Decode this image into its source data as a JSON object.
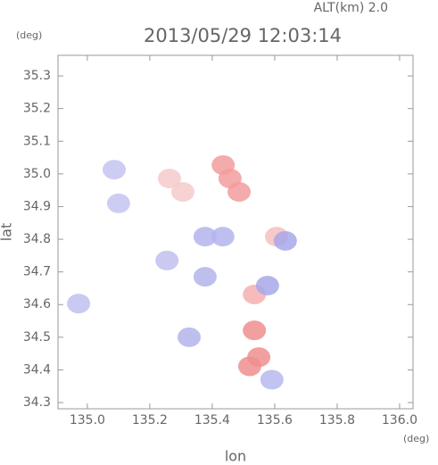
{
  "chart_data": {
    "type": "scatter",
    "title": "2013/05/29 12:03:14",
    "altitude": "ALT(km)  2.0",
    "x_label": "lon",
    "y_label": "lat",
    "x_unit": "(deg)",
    "y_unit": "(deg)",
    "xlim": [
      134.906,
      136.043
    ],
    "ylim": [
      34.281,
      35.363
    ],
    "xticks": [
      {
        "value": 135.0,
        "label": "135.0"
      },
      135.2,
      135.4,
      135.6,
      135.8,
      {
        "value": 136.0,
        "label": "136.0"
      }
    ],
    "yticks": [
      34.3,
      34.4,
      34.5,
      34.6,
      34.7,
      34.8,
      34.9,
      {
        "value": 35.0,
        "label": "35.0"
      },
      35.1,
      35.2,
      35.3
    ],
    "x": [
      135.086,
      135.1,
      135.263,
      135.306,
      135.457,
      135.486,
      135.435,
      135.377,
      135.434,
      135.255,
      135.377,
      134.972,
      135.326,
      135.535,
      135.577,
      135.535,
      135.549,
      135.591,
      135.52,
      135.606,
      135.634
    ],
    "values": [
      35.013,
      34.91,
      34.986,
      34.945,
      34.986,
      34.945,
      35.027,
      34.808,
      34.808,
      34.735,
      34.685,
      34.603,
      34.5,
      34.631,
      34.658,
      34.521,
      34.439,
      34.37,
      34.411,
      34.808,
      34.795
    ],
    "colors": [
      "#c4c4f2",
      "#c4c4f2",
      "#f6caca",
      "#f6caca",
      "#f29c9c",
      "#f29c9c",
      "#f29c9c",
      "#b4b4ec",
      "#b4b4ec",
      "#c0c0f0",
      "#b4b4ec",
      "#c0c0f0",
      "#b4b4ec",
      "#f4b0b0",
      "#a8a8ea",
      "#f08e8e",
      "#f08e8e",
      "#b8b8ee",
      "#f08e8e",
      "#f6c0c0",
      "#a8a8ea"
    ]
  }
}
